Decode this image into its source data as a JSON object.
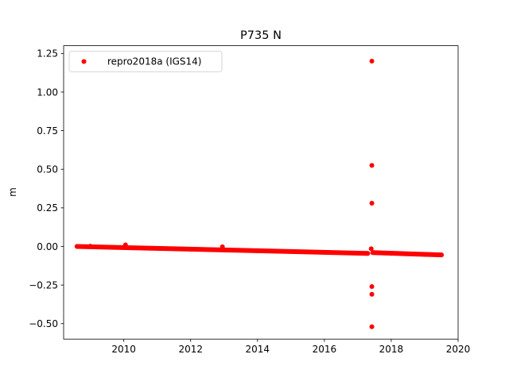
{
  "chart_data": {
    "type": "scatter",
    "title": "P735 N",
    "xlabel": "",
    "ylabel": "m",
    "xlim": [
      2008.2,
      2020.0
    ],
    "ylim": [
      -0.6,
      1.3
    ],
    "xticks": [
      2010,
      2012,
      2014,
      2016,
      2018,
      2020
    ],
    "xtick_labels": [
      "2010",
      "2012",
      "2014",
      "2016",
      "2018",
      "2020"
    ],
    "yticks": [
      -0.5,
      -0.25,
      0.0,
      0.25,
      0.5,
      0.75,
      1.0,
      1.25
    ],
    "ytick_labels": [
      "−0.50",
      "−0.25",
      "0.00",
      "0.25",
      "0.50",
      "0.75",
      "1.00",
      "1.25"
    ],
    "grid": false,
    "legend_position": "top-left",
    "series": [
      {
        "name": "repro2018a (IGS14)",
        "color": "#ff0000",
        "marker": "circle",
        "trend_segments": [
          {
            "x_start": 2008.6,
            "x_end": 2017.3,
            "y_start": 0.0,
            "y_end": -0.045
          },
          {
            "x_start": 2017.45,
            "x_end": 2019.5,
            "y_start": -0.04,
            "y_end": -0.055
          }
        ],
        "points": [
          {
            "x": 2008.6,
            "y": 0.0
          },
          {
            "x": 2009.0,
            "y": 0.002
          },
          {
            "x": 2010.05,
            "y": 0.01
          },
          {
            "x": 2011.0,
            "y": -0.012
          },
          {
            "x": 2012.0,
            "y": -0.018
          },
          {
            "x": 2012.95,
            "y": -0.002
          },
          {
            "x": 2014.0,
            "y": -0.027
          },
          {
            "x": 2015.0,
            "y": -0.033
          },
          {
            "x": 2016.0,
            "y": -0.038
          },
          {
            "x": 2017.0,
            "y": -0.044
          },
          {
            "x": 2017.25,
            "y": -0.045
          },
          {
            "x": 2017.42,
            "y": 1.2
          },
          {
            "x": 2017.42,
            "y": 0.525
          },
          {
            "x": 2017.42,
            "y": 0.28
          },
          {
            "x": 2017.4,
            "y": -0.015
          },
          {
            "x": 2017.42,
            "y": -0.26
          },
          {
            "x": 2017.42,
            "y": -0.31
          },
          {
            "x": 2017.42,
            "y": -0.52
          },
          {
            "x": 2018.0,
            "y": -0.045
          },
          {
            "x": 2019.0,
            "y": -0.052
          },
          {
            "x": 2019.5,
            "y": -0.055
          }
        ]
      }
    ]
  }
}
